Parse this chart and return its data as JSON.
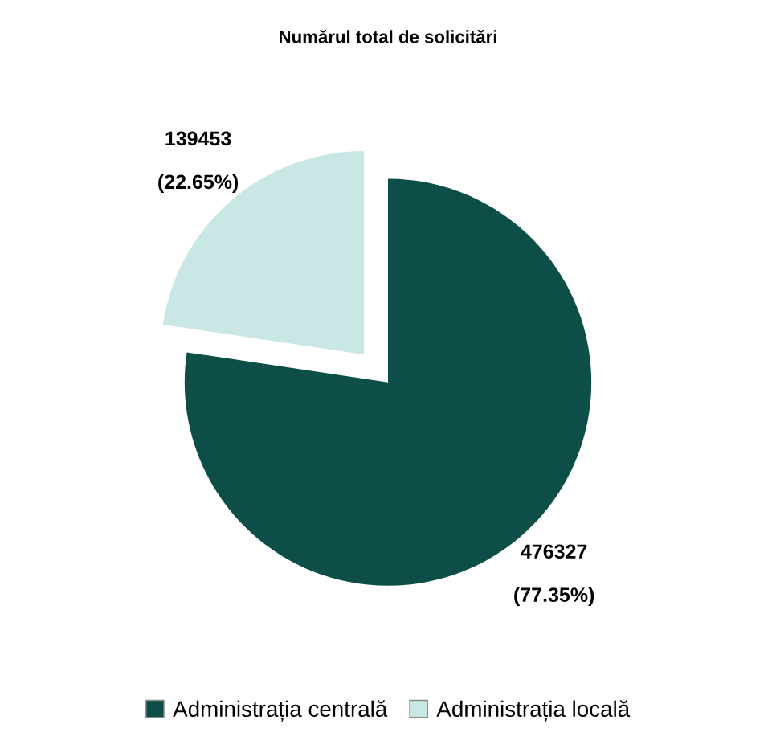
{
  "chart_data": {
    "type": "pie",
    "title": "Numărul total de solicitări",
    "categories": [
      "Administrația centrală",
      "Administrația locală"
    ],
    "values": [
      77.35,
      22.65
    ],
    "value_labels": [
      "476327\n\n(77.35%)",
      "139453\n\n(22.65%)"
    ],
    "colors": [
      "#0e4e49",
      "#c9e7e5"
    ],
    "legend": "bottom"
  }
}
